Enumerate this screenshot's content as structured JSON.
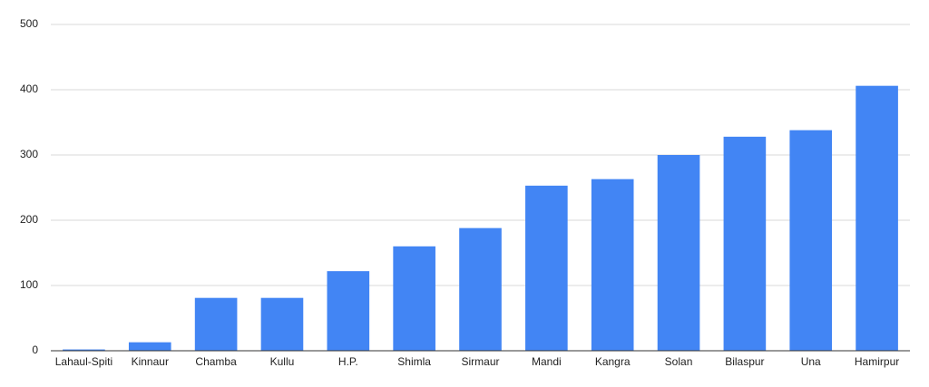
{
  "chart_data": {
    "type": "bar",
    "categories": [
      "Lahaul-Spiti",
      "Kinnaur",
      "Chamba",
      "Kullu",
      "H.P.",
      "Shimla",
      "Sirmaur",
      "Mandi",
      "Kangra",
      "Solan",
      "Bilaspur",
      "Una",
      "Hamirpur"
    ],
    "values": [
      2,
      13,
      81,
      81,
      122,
      160,
      188,
      253,
      263,
      300,
      328,
      338,
      406
    ],
    "color": "#4285f4",
    "ylim": [
      0,
      500
    ],
    "yticks": [
      0,
      100,
      200,
      300,
      400,
      500
    ],
    "grid": true
  }
}
